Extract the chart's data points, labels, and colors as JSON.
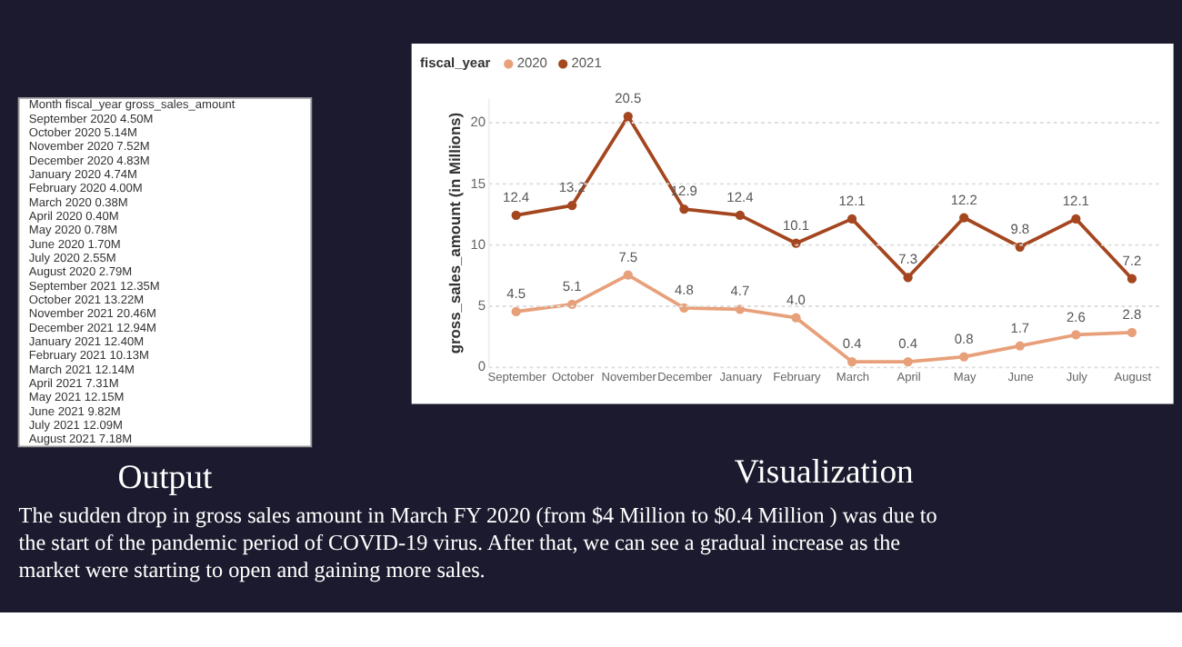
{
  "chart_data": [
    {
      "type": "other",
      "title": "Output",
      "annotations": [
        "Month   fiscal_year   gross_sales_amount",
        "September   2020   4.50M",
        "October   2020   5.14M",
        "November   2020   7.52M",
        "December   2020   4.83M",
        "January   2020   4.74M",
        "February   2020   4.00M",
        "March   2020   0.38M",
        "April   2020   0.40M",
        "May   2020   0.78M",
        "June   2020   1.70M",
        "July   2020   2.55M",
        "August   2020   2.79M",
        "September   2021   12.35M",
        "October   2021   13.22M",
        "November   2021   20.46M",
        "December   2021   12.94M",
        "January   2021   12.40M",
        "February   2021   10.13M",
        "March   2021   12.14M",
        "April   2021   7.31M",
        "May   2021   12.15M",
        "June   2021   9.82M",
        "July   2021   12.09M",
        "August   2021   7.18M"
      ]
    },
    {
      "type": "line",
      "title": "Visualization",
      "legend_title": "fiscal_year",
      "ylabel": "gross_sales_amount (in Millions)",
      "categories": [
        "September",
        "October",
        "November",
        "December",
        "January",
        "February",
        "March",
        "April",
        "May",
        "June",
        "July",
        "August"
      ],
      "series": [
        {
          "name": "2020",
          "color": "#e8a07a",
          "values": [
            4.5,
            5.1,
            7.5,
            4.8,
            4.7,
            4.0,
            0.4,
            0.4,
            0.8,
            1.7,
            2.6,
            2.8
          ],
          "value_labels": [
            "4.5",
            "5.1",
            "7.5",
            "4.8",
            "4.7",
            "4.0",
            "0.4",
            "0.4",
            "0.8",
            "1.7",
            "2.6",
            "2.8"
          ]
        },
        {
          "name": "2021",
          "color": "#a4461f",
          "values": [
            12.4,
            13.2,
            20.5,
            12.9,
            12.4,
            10.1,
            12.1,
            7.3,
            12.2,
            9.8,
            12.1,
            7.2
          ],
          "value_labels": [
            "12.4",
            "13.2",
            "20.5",
            "12.9",
            "12.4",
            "10.1",
            "12.1",
            "7.3",
            "12.2",
            "9.8",
            "12.1",
            "7.2"
          ]
        }
      ],
      "ylim": [
        0,
        22
      ],
      "yticks": [
        0,
        5,
        10,
        15,
        20
      ],
      "grid": "y",
      "legend": "top left",
      "marker": "circle",
      "line_style": "solid",
      "annotations": [
        "The sudden drop in gross sales amount in March FY 2020 (from $4 Million to $0.4 Million ) was due to",
        "the start of the pandemic period of COVID-19 virus. After that, we can see a gradual increase as the",
        "market were starting to open and gaining more sales."
      ]
    }
  ]
}
